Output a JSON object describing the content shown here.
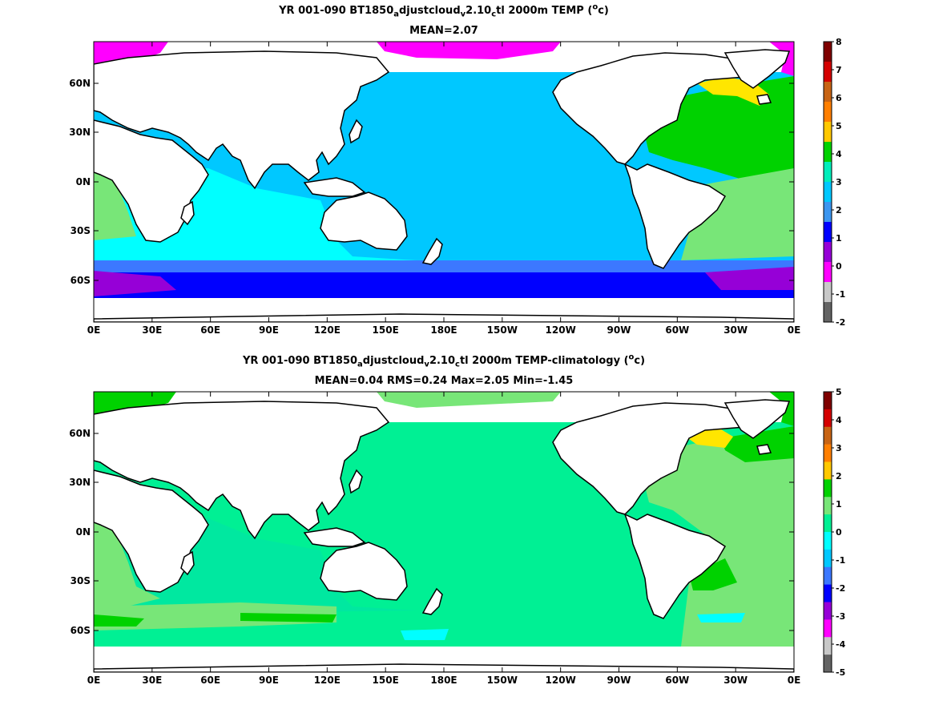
{
  "panels": [
    {
      "id": "top",
      "title": {
        "head": "YR 001-090 BT1850",
        "s1": "a",
        "mid1": "djustcloud",
        "s2": "v",
        "mid2": "2.10",
        "s3": "c",
        "tail": "tl 2000m TEMP (",
        "sup": "o",
        "end": "c)"
      },
      "subtitle": "MEAN=2.07",
      "colorbar": {
        "labels": [
          "8",
          "7",
          "6",
          "5",
          "4",
          "3",
          "2",
          "1",
          "0",
          "-1",
          "-2"
        ],
        "colors": [
          "#7f0000",
          "#d40000",
          "#c86414",
          "#ff7f00",
          "#ffc800",
          "#00d200",
          "#00eebb",
          "#00c8ff",
          "#3c96f0",
          "#0000ff",
          "#9600d7",
          "#ff00ff",
          "#c8c8c8",
          "#646464"
        ]
      }
    },
    {
      "id": "bottom",
      "title": {
        "head": "YR 001-090 BT1850",
        "s1": "a",
        "mid1": "djustcloud",
        "s2": "v",
        "mid2": "2.10",
        "s3": "c",
        "tail": "tl 2000m TEMP-climatology (",
        "sup": "o",
        "end": "c)"
      },
      "subtitle": "MEAN=0.04   RMS=0.24   Max=2.05   Min=-1.45",
      "colorbar": {
        "labels": [
          "5",
          "4",
          "3",
          "2",
          "1",
          "0",
          "-1",
          "-2",
          "-3",
          "-4",
          "-5"
        ],
        "colors": [
          "#7f0000",
          "#d40000",
          "#c86414",
          "#ff7f00",
          "#ffc800",
          "#00d200",
          "#78e678",
          "#00f094",
          "#00ffff",
          "#00c8ff",
          "#3c78ff",
          "#0000ff",
          "#9600d7",
          "#ff00ff",
          "#c8c8c8",
          "#646464"
        ]
      }
    }
  ],
  "axes": {
    "lon_ticks": [
      "0E",
      "30E",
      "60E",
      "90E",
      "120E",
      "150E",
      "180E",
      "150W",
      "120W",
      "90W",
      "60W",
      "30W",
      "0E"
    ],
    "lat_ticks": [
      "60N",
      "30N",
      "0N",
      "30S",
      "60S"
    ]
  },
  "colors": {
    "land": "#ffffff",
    "coast": "#000000",
    "top_ocean_main": "#00c8ff",
    "top_indian": "#00ffff",
    "top_atlantic_north": "#00d200",
    "top_atlantic_south": "#78e678",
    "top_labrador": "#ffe600",
    "top_southern": "#3c78ff",
    "top_southern_deep": "#0000ff",
    "top_weddell": "#9600d7",
    "top_arctic": "#ff00ff",
    "bot_ocean_main": "#00f094",
    "bot_ocean_alt": "#00e8a0",
    "bot_atlantic": "#78e678",
    "bot_green": "#00d200",
    "bot_labrador": "#ffe600",
    "bot_cyan": "#00ffff"
  }
}
